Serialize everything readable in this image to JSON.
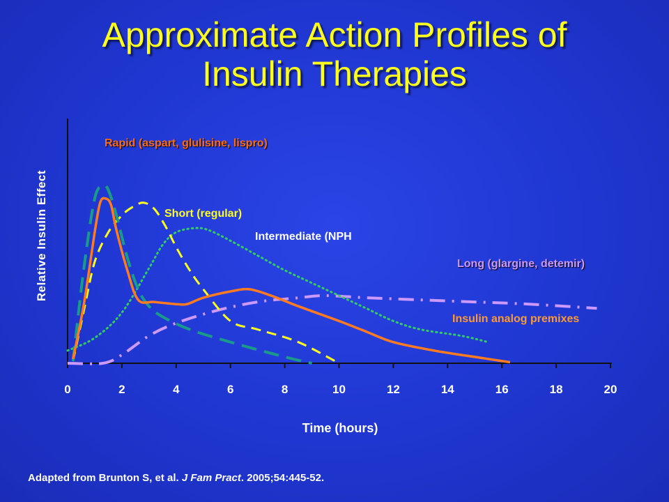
{
  "title": {
    "line1": "Approximate Action Profiles of",
    "line2": "Insulin Therapies"
  },
  "chart_data": {
    "type": "line",
    "title": "Approximate Action Profiles of Insulin Therapies",
    "xlabel": "Time (hours)",
    "ylabel": "Relative Insulin Effect",
    "xlim": [
      0,
      20
    ],
    "ylim": [
      0,
      100
    ],
    "xticks": [
      "0",
      "2",
      "4",
      "6",
      "8",
      "10",
      "12",
      "14",
      "16",
      "18",
      "20"
    ],
    "grid": false,
    "series": [
      {
        "name": "Rapid (aspart, glulisine, lispro)",
        "color": "#1a9a8a",
        "style": "longdash",
        "x": [
          0.2,
          0.6,
          1.0,
          1.3,
          1.5,
          1.8,
          2.2,
          2.6,
          3.0,
          3.5,
          4.5,
          6.0,
          8.0,
          9.0
        ],
        "y": [
          1,
          45,
          78,
          84,
          82,
          70,
          50,
          35,
          27,
          22,
          16,
          10,
          3,
          0
        ]
      },
      {
        "name": "Short (regular)",
        "color": "#ffff1e",
        "style": "dash",
        "x": [
          0.2,
          0.6,
          1.0,
          1.5,
          2.0,
          2.4,
          2.8,
          3.2,
          3.6,
          4.0,
          4.5,
          5.0,
          6.0,
          7.0,
          8.5,
          10.0
        ],
        "y": [
          1,
          25,
          48,
          62,
          70,
          74,
          76,
          73,
          65,
          55,
          44,
          35,
          20,
          16,
          10,
          0
        ]
      },
      {
        "name": "Intermediate (NPH",
        "color": "#33cc66",
        "style": "dot",
        "x": [
          0,
          1.0,
          2.0,
          3.0,
          3.5,
          4.0,
          4.7,
          5.2,
          6.0,
          7.0,
          8.0,
          9.0,
          10.0,
          11.0,
          12.0,
          13.0,
          14.5,
          15.5
        ],
        "y": [
          6,
          12,
          24,
          45,
          56,
          62,
          64,
          63,
          58,
          51,
          44,
          38,
          32,
          26,
          20,
          16,
          13,
          10
        ]
      },
      {
        "name": "Insulin analog premixes",
        "color": "#ff7b22",
        "style": "solid",
        "x": [
          0.2,
          0.6,
          1.0,
          1.2,
          1.4,
          1.6,
          1.8,
          2.2,
          2.6,
          3.2,
          4.0,
          4.4,
          5.0,
          6.0,
          6.7,
          7.5,
          8.5,
          10.0,
          11.0,
          12.0,
          13.5,
          15.0,
          16.3
        ],
        "y": [
          2,
          28,
          62,
          76,
          78,
          75,
          63,
          44,
          30,
          29,
          28,
          28,
          31,
          34,
          35,
          32,
          27,
          20,
          15,
          10,
          6,
          3,
          0.5
        ]
      },
      {
        "name": "Long (glargine, detemir)",
        "color": "#cc99ff",
        "style": "dashdot",
        "x": [
          0,
          1.3,
          2.0,
          3.0,
          4.0,
          5.5,
          7.0,
          8.5,
          9.5,
          11.0,
          13.0,
          15.0,
          17.0,
          19.5
        ],
        "y": [
          0,
          0,
          4,
          13,
          19,
          25,
          29,
          31,
          32,
          31,
          30,
          29,
          28,
          26
        ]
      }
    ]
  },
  "labels": {
    "rapid": "Rapid (aspart, glulisine, lispro)",
    "short": "Short (regular)",
    "nph": "Intermediate (NPH",
    "long": "Long (glargine, detemir)",
    "premix": "Insulin analog premixes"
  },
  "colors": {
    "rapid_label": "#ff6a1a",
    "long_label": "#cc99ff",
    "premix_label": "#ff9933"
  },
  "source": {
    "prefix": "Adapted from Brunton S, et al. ",
    "journal": "J Fam Pract",
    "suffix": ". 2005;54:445-52."
  }
}
